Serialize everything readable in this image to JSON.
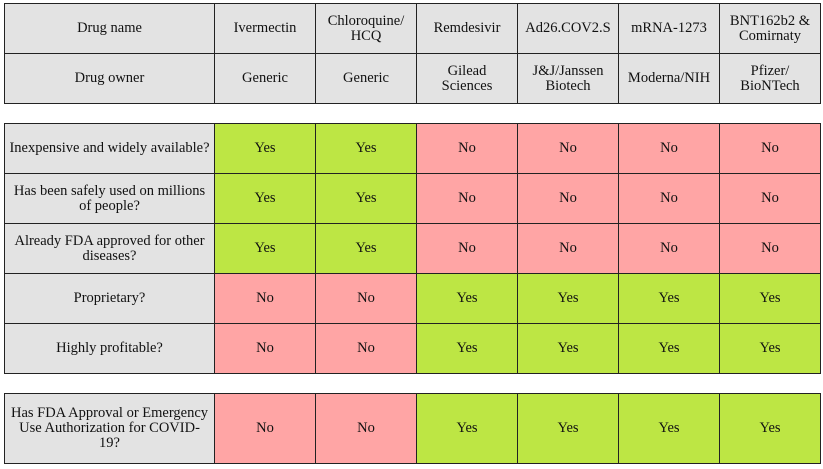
{
  "header": {
    "name_row": {
      "label": "Drug name",
      "cells": [
        "Ivermectin",
        "Chloroquine/\nHCQ",
        "Remdesivir",
        "Ad26.COV2.S",
        "mRNA-1273",
        "BNT162b2 &\nComirnaty"
      ]
    },
    "owner_row": {
      "label": "Drug owner",
      "cells": [
        "Generic",
        "Generic",
        "Gilead\nSciences",
        "J&J/Janssen\nBiotech",
        "Moderna/NIH",
        "Pfizer/\nBioNTech"
      ]
    }
  },
  "criteria": [
    {
      "question": "Inexpensive and widely available?",
      "answers": [
        "Yes",
        "Yes",
        "No",
        "No",
        "No",
        "No"
      ]
    },
    {
      "question": "Has been safely used on millions of people?",
      "answers": [
        "Yes",
        "Yes",
        "No",
        "No",
        "No",
        "No"
      ]
    },
    {
      "question": "Already FDA approved for other diseases?",
      "answers": [
        "Yes",
        "Yes",
        "No",
        "No",
        "No",
        "No"
      ]
    },
    {
      "question": "Proprietary?",
      "answers": [
        "No",
        "No",
        "Yes",
        "Yes",
        "Yes",
        "Yes"
      ]
    },
    {
      "question": "Highly profitable?",
      "answers": [
        "No",
        "No",
        "Yes",
        "Yes",
        "Yes",
        "Yes"
      ]
    }
  ],
  "covid": {
    "question": "Has FDA Approval or Emergency Use Authorization for COVID-19?",
    "answers": [
      "No",
      "No",
      "Yes",
      "Yes",
      "Yes",
      "Yes"
    ]
  },
  "colors": {
    "yes": "#bde644",
    "no": "#ffa5a5",
    "header": "#e3e3e3",
    "border": "#222222"
  }
}
